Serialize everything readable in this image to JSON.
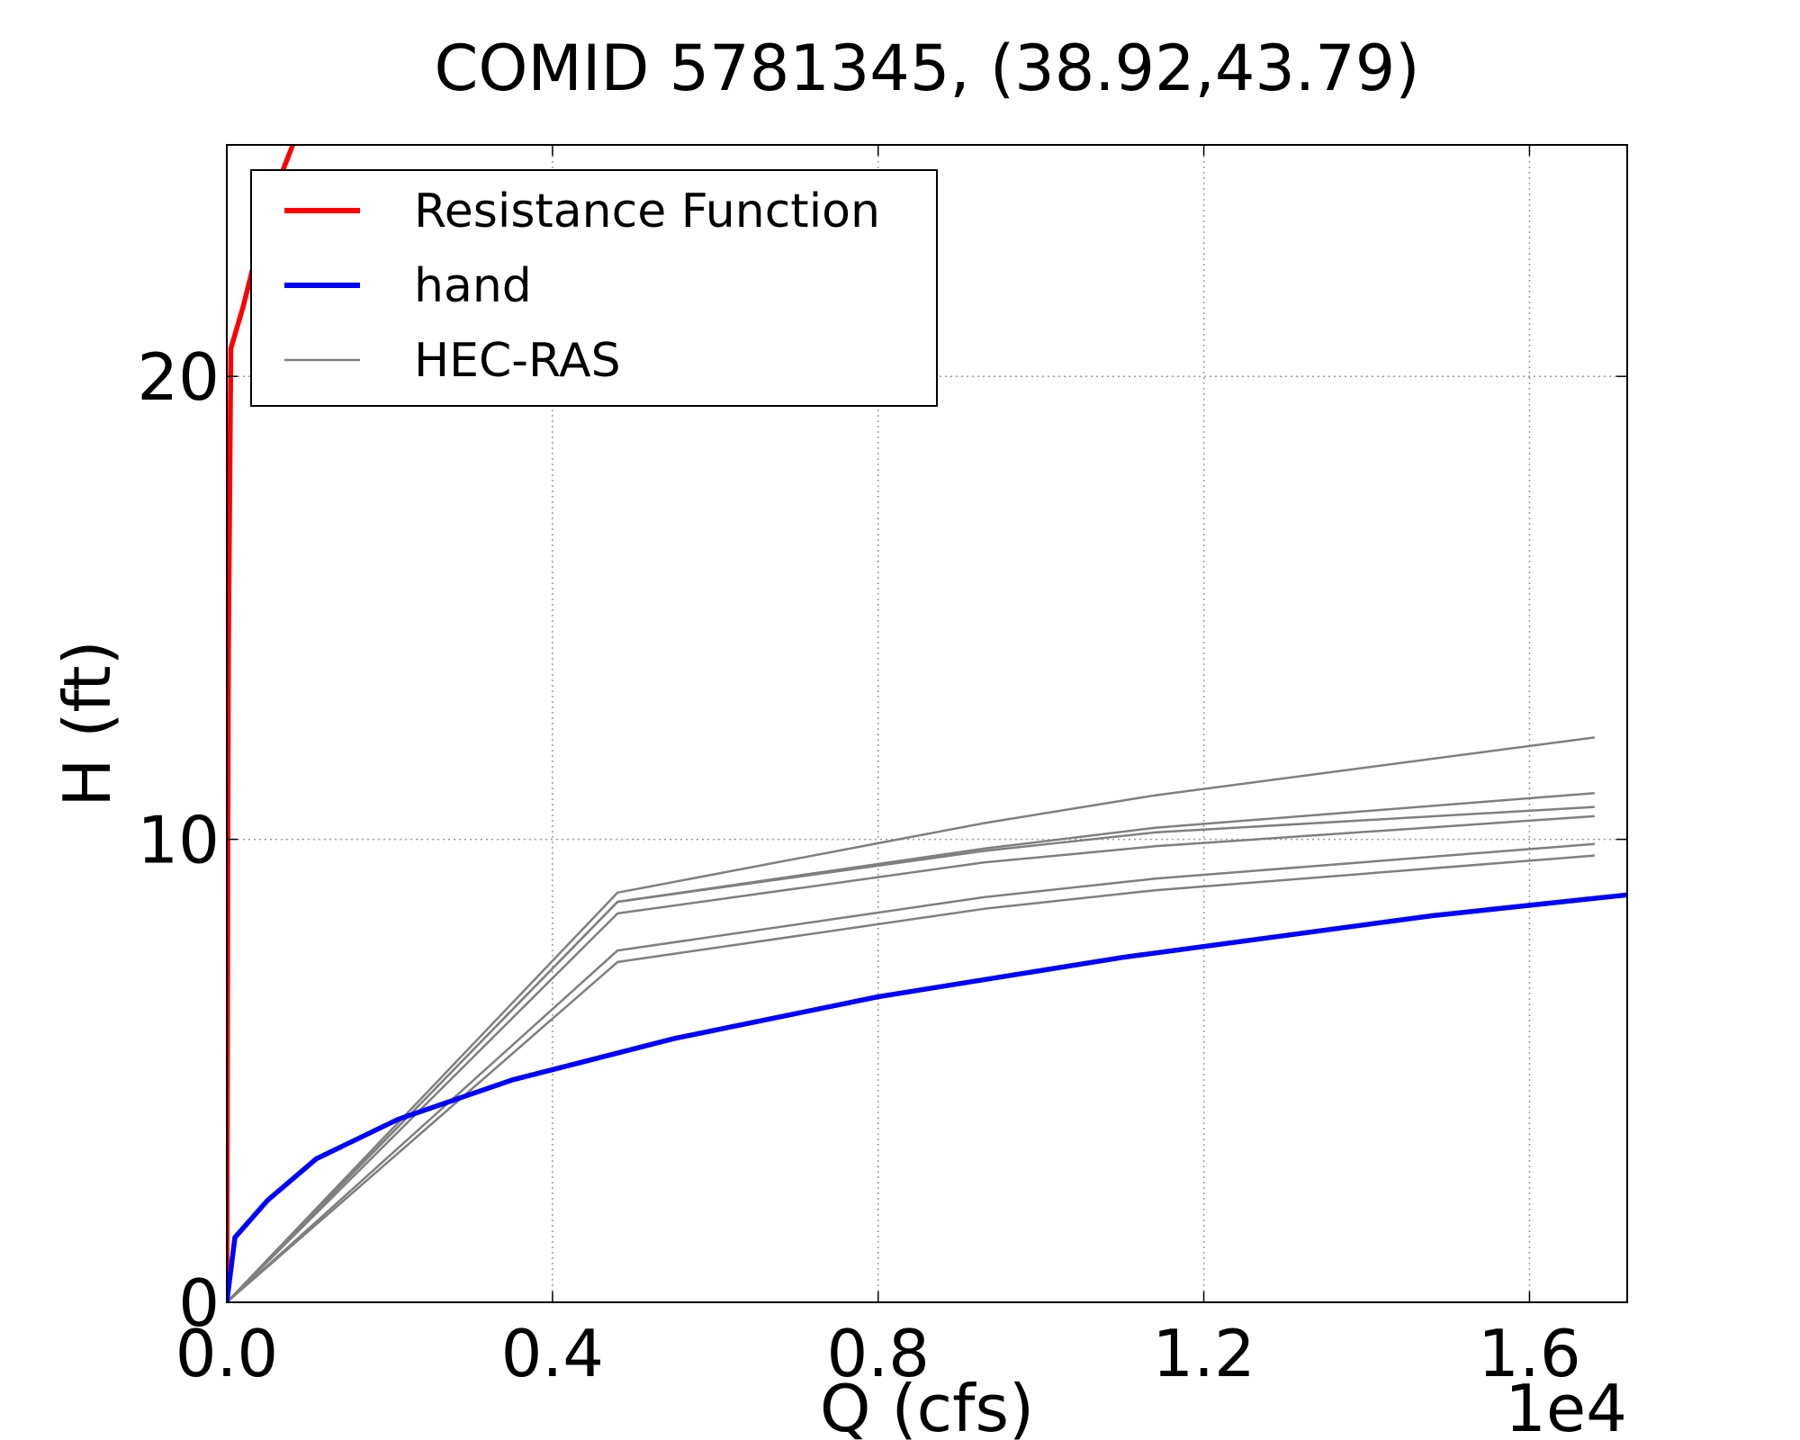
{
  "chart_data": {
    "type": "line",
    "title": "COMID 5781345, (38.92,43.79)",
    "xlabel": "Q (cfs)",
    "ylabel": "H (ft)",
    "x_offset_label": "1e4",
    "xlim": [
      0,
      17200
    ],
    "ylim": [
      0,
      25
    ],
    "xticks": [
      0,
      4000,
      8000,
      12000,
      16000
    ],
    "xtick_labels": [
      "0.0",
      "0.4",
      "0.8",
      "1.2",
      "1.6"
    ],
    "yticks": [
      0,
      10,
      20
    ],
    "ytick_labels": [
      "0",
      "10",
      "20"
    ],
    "grid": true,
    "legend": {
      "placement": "top-left",
      "entries": [
        "Resistance Function",
        "hand",
        "HEC-RAS"
      ]
    },
    "series": [
      {
        "name": "Resistance Function",
        "color": "#ff0000",
        "points": [
          [
            0,
            0
          ],
          [
            20,
            14
          ],
          [
            50,
            20.6
          ],
          [
            200,
            21.5
          ],
          [
            500,
            23.6
          ],
          [
            700,
            24.5
          ],
          [
            900,
            25.4
          ]
        ]
      },
      {
        "name": "hand",
        "color": "#0000ff",
        "points": [
          [
            0,
            0
          ],
          [
            100,
            1.4
          ],
          [
            500,
            2.2
          ],
          [
            1100,
            3.1
          ],
          [
            2100,
            3.95
          ],
          [
            3500,
            4.8
          ],
          [
            5500,
            5.7
          ],
          [
            8000,
            6.6
          ],
          [
            11000,
            7.45
          ],
          [
            14800,
            8.35
          ],
          [
            17200,
            8.8
          ]
        ]
      },
      {
        "name": "HEC-RAS",
        "color": "#7f7f7f",
        "lines": [
          [
            [
              0,
              0
            ],
            [
              4800,
              8.85
            ],
            [
              9300,
              10.35
            ],
            [
              11400,
              10.95
            ],
            [
              16800,
              12.2
            ]
          ],
          [
            [
              0,
              0
            ],
            [
              4800,
              8.65
            ],
            [
              9300,
              9.8
            ],
            [
              11400,
              10.25
            ],
            [
              16800,
              11.0
            ]
          ],
          [
            [
              0,
              0
            ],
            [
              4800,
              8.65
            ],
            [
              9300,
              9.75
            ],
            [
              11400,
              10.15
            ],
            [
              16800,
              10.7
            ]
          ],
          [
            [
              0,
              0
            ],
            [
              4800,
              8.4
            ],
            [
              9300,
              9.5
            ],
            [
              11400,
              9.85
            ],
            [
              16800,
              10.5
            ]
          ],
          [
            [
              0,
              0
            ],
            [
              4800,
              7.6
            ],
            [
              9300,
              8.75
            ],
            [
              11400,
              9.15
            ],
            [
              16800,
              9.9
            ]
          ],
          [
            [
              0,
              0
            ],
            [
              4800,
              7.35
            ],
            [
              9300,
              8.5
            ],
            [
              11400,
              8.9
            ],
            [
              16800,
              9.65
            ]
          ]
        ]
      }
    ]
  }
}
